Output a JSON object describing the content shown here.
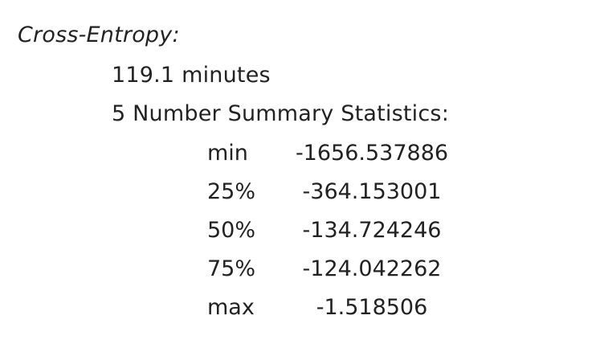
{
  "section": {
    "title": "Cross-Entropy:",
    "duration": "119.1 minutes",
    "summary_heading": "5 Number Summary Statistics:",
    "stats": [
      {
        "label": "min",
        "value": "-1656.537886"
      },
      {
        "label": "25%",
        "value": "-364.153001"
      },
      {
        "label": "50%",
        "value": "-134.724246"
      },
      {
        "label": "75%",
        "value": "-124.042262"
      },
      {
        "label": "max",
        "value": "-1.518506"
      }
    ]
  }
}
